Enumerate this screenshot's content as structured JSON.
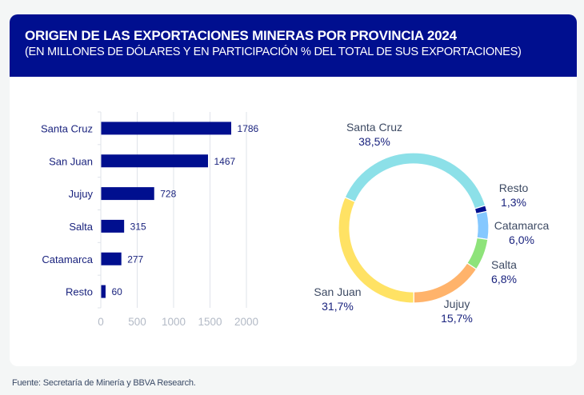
{
  "header": {
    "title": "ORIGEN DE LAS EXPORTACIONES MINERAS POR PROVINCIA 2024",
    "subtitle": "(EN MILLONES DE DÓLARES Y EN PARTICIPACIÓN % DEL TOTAL DE SUS EXPORTACIONES)"
  },
  "source": "Fuente: Secretaría de Minería y BBVA Research.",
  "colors": {
    "header_bg": "#000f8f",
    "bar": "#000f8f",
    "label_text": "#1a237e",
    "axis_text": "#b3bac6",
    "gridline": "#dfe3ea"
  },
  "chart_data": [
    {
      "type": "bar",
      "orientation": "horizontal",
      "title": "",
      "categories": [
        "Santa Cruz",
        "San Juan",
        "Jujuy",
        "Salta",
        "Catamarca",
        "Resto"
      ],
      "values": [
        1786,
        1467,
        728,
        315,
        277,
        60
      ],
      "value_labels": [
        "1786",
        "1467",
        "728",
        "315",
        "277",
        "60"
      ],
      "xlabel": "",
      "ylabel": "",
      "xlim": [
        0,
        2000
      ],
      "xticks": [
        0,
        500,
        1000,
        1500,
        2000
      ],
      "grid": true,
      "unit": "millones de dólares"
    },
    {
      "type": "pie",
      "donut": true,
      "title": "",
      "categories": [
        "Santa Cruz",
        "Resto",
        "Catamarca",
        "Salta",
        "Jujuy",
        "San Juan"
      ],
      "values": [
        38.5,
        1.3,
        6.0,
        6.8,
        15.7,
        31.7
      ],
      "value_labels": [
        "38,5%",
        "1,3%",
        "6,0%",
        "6,8%",
        "15,7%",
        "31,7%"
      ],
      "colors": [
        "#8ce0e8",
        "#000f8f",
        "#85c8ff",
        "#8ee37a",
        "#ffb36b",
        "#ffe264"
      ],
      "unit": "% del total de sus exportaciones"
    }
  ]
}
